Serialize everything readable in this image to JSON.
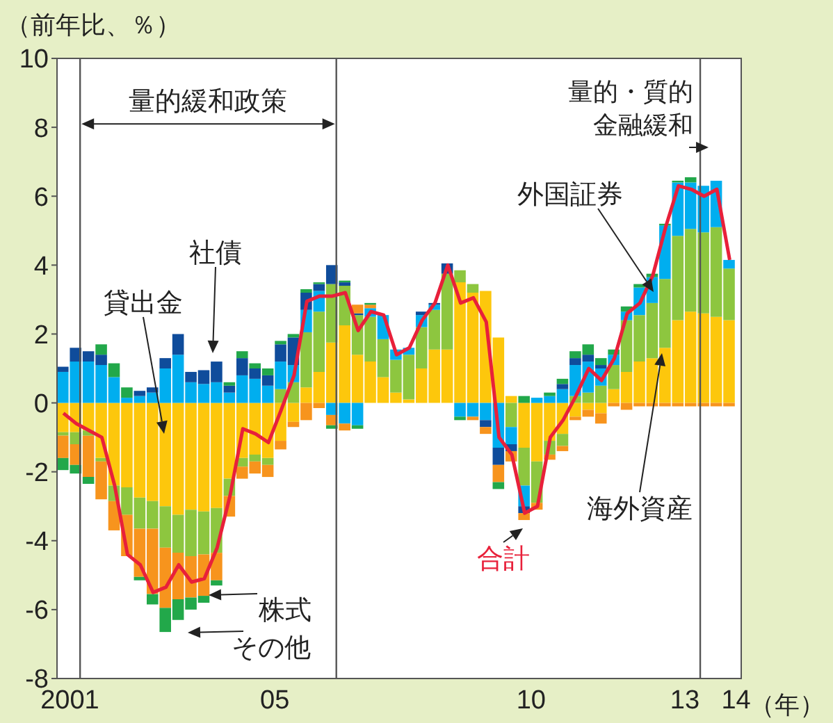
{
  "chart_data": {
    "type": "bar",
    "stacked": true,
    "ylabel": "（前年比、％）",
    "xlabel": "（年）",
    "x": [
      2000.875,
      2001.125,
      2001.375,
      2001.625,
      2001.875,
      2002.125,
      2002.375,
      2002.625,
      2002.875,
      2003.125,
      2003.375,
      2003.625,
      2003.875,
      2004.125,
      2004.375,
      2004.625,
      2004.875,
      2005.125,
      2005.375,
      2005.625,
      2005.875,
      2006.125,
      2006.375,
      2006.625,
      2006.875,
      2007.125,
      2007.375,
      2007.625,
      2007.875,
      2008.125,
      2008.375,
      2008.625,
      2008.875,
      2009.125,
      2009.375,
      2009.625,
      2009.875,
      2010.125,
      2010.375,
      2010.625,
      2010.875,
      2011.125,
      2011.375,
      2011.625,
      2011.875,
      2012.125,
      2012.375,
      2012.625,
      2012.875,
      2013.125,
      2013.375,
      2013.625,
      2013.875
    ],
    "series": [
      {
        "name": "貸出金",
        "color": "#fdc70c",
        "values": [
          -0.85,
          -0.85,
          -0.8,
          -1.6,
          -2.4,
          -2.45,
          -2.75,
          -2.85,
          -3.0,
          -3.25,
          -3.1,
          -3.15,
          -3.05,
          -2.2,
          -1.6,
          -1.5,
          -1.6,
          -1.1,
          -0.55,
          0.45,
          0.9,
          1.75,
          2.25,
          1.4,
          1.2,
          0.75,
          0.3,
          0.1,
          1.0,
          1.55,
          1.55,
          3.5,
          3.2,
          3.25,
          1.9,
          0.2,
          -1.3,
          -1.7,
          -1.1,
          -0.9,
          -0.4,
          -0.2,
          -0.3,
          0.4,
          0.9,
          1.2,
          1.3,
          1.6,
          2.4,
          2.65,
          2.6,
          2.5,
          2.4
        ]
      },
      {
        "name": "海外資産",
        "color": "#8dc63f",
        "values": [
          -0.1,
          -0.35,
          -0.15,
          -0.1,
          -0.45,
          -0.8,
          -0.9,
          -0.8,
          -1.2,
          -1.1,
          -1.35,
          -1.25,
          -1.3,
          -0.5,
          -0.25,
          -0.2,
          -0.2,
          0.4,
          0.6,
          1.6,
          1.75,
          1.7,
          1.15,
          1.15,
          1.3,
          1.1,
          0.95,
          1.3,
          1.2,
          1.15,
          2.2,
          0.35,
          0.25,
          0,
          0,
          -0.7,
          -1.1,
          -1.2,
          -0.4,
          -0.35,
          0.2,
          0.3,
          0.5,
          0.7,
          1.5,
          1.35,
          1.6,
          2.0,
          2.45,
          2.4,
          2.35,
          2.6,
          1.5
        ]
      },
      {
        "name": "外国証券",
        "color": "#00aeef",
        "values": [
          0.9,
          1.2,
          1.2,
          1.1,
          0.75,
          0.15,
          0.2,
          0.3,
          1.0,
          1.4,
          0.6,
          0.55,
          0.6,
          0.3,
          0.8,
          0.7,
          0.5,
          0.8,
          0.5,
          0.65,
          0.6,
          -0.35,
          -0.6,
          -0.65,
          0.25,
          0.7,
          0.3,
          0.2,
          0.35,
          0.15,
          0,
          -0.4,
          -0.4,
          -0.5,
          -1.3,
          -0.5,
          -0.6,
          0.15,
          0.2,
          0.4,
          0.9,
          0.9,
          0.5,
          0.3,
          0.25,
          0.8,
          0.75,
          1.55,
          1.55,
          1.35,
          1.35,
          1.35,
          0.25
        ]
      },
      {
        "name": "社債",
        "color": "#0f4c9b",
        "values": [
          0.15,
          0.4,
          0.3,
          0.3,
          0,
          0,
          0.15,
          0.15,
          0.3,
          0.6,
          0.3,
          0.4,
          0.6,
          0.2,
          0.5,
          0.3,
          0.3,
          0.5,
          0.8,
          0.5,
          0.2,
          0.55,
          0.1,
          0.05,
          0,
          0,
          0,
          0,
          0.1,
          0.05,
          0.3,
          0,
          0,
          -0.2,
          -0.5,
          -0.2,
          -0.2,
          0,
          0,
          0.15,
          0.2,
          0.2,
          0.1,
          0,
          0,
          0,
          0,
          0,
          0,
          0,
          0,
          0,
          0
        ]
      },
      {
        "name": "株式",
        "color": "#f7941d",
        "values": [
          -0.65,
          -0.6,
          -1.2,
          -1.1,
          -0.85,
          -1.2,
          -1.4,
          -1.9,
          -1.75,
          -1.35,
          -1.2,
          -1.2,
          -0.8,
          -0.6,
          -0.35,
          -0.35,
          -0.35,
          -0.25,
          -0.15,
          -0.5,
          -0.15,
          -0.3,
          -0.2,
          0.25,
          0.1,
          0,
          0,
          0,
          0,
          0,
          0,
          0,
          -0.1,
          -0.2,
          -0.5,
          -0.3,
          -0.2,
          -0.2,
          -0.15,
          -0.15,
          -0.1,
          -0.2,
          -0.3,
          -0.1,
          -0.2,
          -0.1,
          -0.1,
          -0.1,
          -0.1,
          -0.1,
          -0.1,
          -0.1,
          -0.1
        ]
      },
      {
        "name": "その他",
        "color": "#22a84a",
        "values": [
          -0.35,
          -0.25,
          -0.2,
          0.3,
          0.4,
          0.3,
          -0.1,
          -0.3,
          -0.7,
          -0.6,
          -0.35,
          -0.2,
          -0.15,
          0.1,
          0.2,
          0.15,
          0.2,
          0.1,
          0.1,
          0.1,
          0.05,
          -0.1,
          0.05,
          -0.1,
          0.05,
          0,
          0,
          0,
          0,
          0,
          0,
          -0.1,
          0,
          0,
          -0.2,
          0,
          0.2,
          0,
          0.1,
          0.15,
          0.2,
          0.3,
          0.2,
          0.15,
          0.15,
          0.1,
          0.1,
          0.05,
          0.05,
          0.15,
          0,
          0,
          0
        ]
      },
      {
        "name": "合計",
        "type": "line",
        "color": "#e8203a",
        "values": [
          -0.3,
          -0.6,
          -0.8,
          -1.0,
          -2.4,
          -4.4,
          -4.7,
          -5.5,
          -5.35,
          -4.7,
          -5.2,
          -5.1,
          -4.2,
          -2.7,
          -0.75,
          -0.9,
          -1.15,
          -0.2,
          0.8,
          2.95,
          3.1,
          3.1,
          3.2,
          2.1,
          2.65,
          2.55,
          1.4,
          1.6,
          2.4,
          2.9,
          4.0,
          2.9,
          3.05,
          2.35,
          -1.0,
          -1.5,
          -3.2,
          -3.0,
          -1.0,
          -0.5,
          0.2,
          1.0,
          0.65,
          1.3,
          2.6,
          2.9,
          3.7,
          5.1,
          6.3,
          6.2,
          6.0,
          6.2,
          4.15
        ]
      }
    ],
    "xlim": [
      2000.75,
      2014.1
    ],
    "xticks": [
      {
        "value": 2001,
        "label": "2001"
      },
      {
        "value": 2005,
        "label": "05"
      },
      {
        "value": 2010,
        "label": "10"
      },
      {
        "value": 2013,
        "label": "13"
      },
      {
        "value": 2014,
        "label": "14"
      }
    ],
    "ylim": [
      -8,
      10
    ],
    "yticks": [
      -8,
      -6,
      -4,
      -2,
      0,
      2,
      4,
      6,
      8,
      10
    ],
    "ref_lines": [
      {
        "axis": "x",
        "value": 2001.2,
        "label": null,
        "color": "#555555"
      },
      {
        "axis": "x",
        "value": 2006.2,
        "label": null,
        "color": "#555555"
      },
      {
        "axis": "x",
        "value": 2013.3,
        "label": "量的・質的金融緩和",
        "color": "#555555"
      }
    ],
    "annotations": [
      "量的緩和政策"
    ],
    "legend": false,
    "grid": false
  }
}
